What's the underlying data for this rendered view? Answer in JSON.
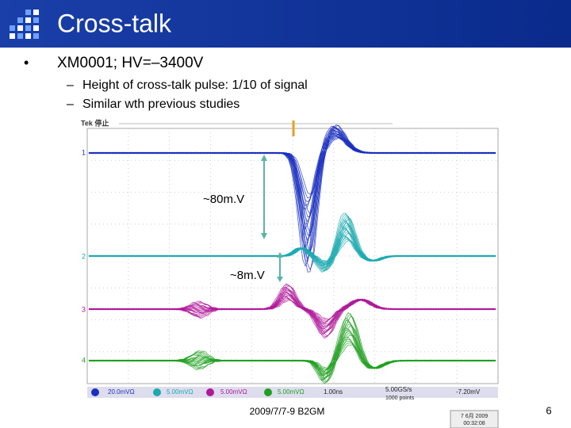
{
  "header": {
    "title": "Cross-talk"
  },
  "bullets": [
    {
      "text": "XM0001; HV=–3400V",
      "children": [
        "Height of cross-talk pulse: 1/10 of signal",
        "Similar wth previous studies"
      ]
    }
  ],
  "scope": {
    "status": "Tek 停止",
    "channels": [
      "1",
      "2",
      "3",
      "4"
    ],
    "scales": [
      "20.0mVΩ",
      "5.00mVΩ",
      "5.00mVΩ",
      "5.00mVΩ"
    ],
    "timebase": "1.00ns",
    "sample_rate": "5.00GS/s",
    "points": "1000 points",
    "trigger": "-7.20mV",
    "date": "7 6月 2009",
    "time": "00:32:08"
  },
  "annotations": [
    "~80m.V",
    "~8m.V"
  ],
  "footer": {
    "text": "2009/7/7-9 B2GM",
    "page": "6"
  }
}
